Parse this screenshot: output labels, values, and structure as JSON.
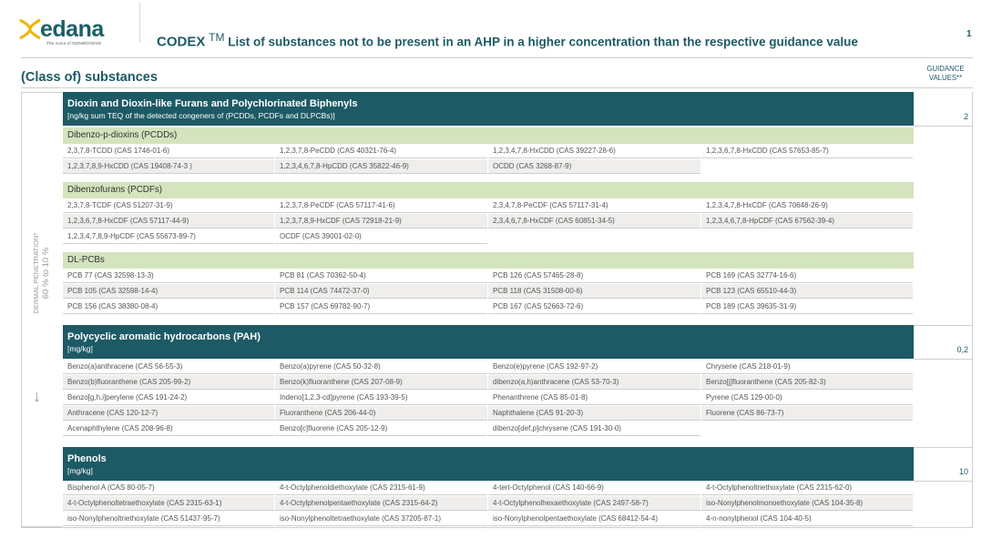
{
  "header": {
    "logo_text": "edana",
    "logo_tagline": "The voice of NONWOVENS",
    "codex": "CODEX",
    "tm": "TM",
    "title": "List of substances not to be present in an AHP in a higher concentration than the respective guidance value",
    "page_number": "1"
  },
  "table_head": {
    "class_paren_open": "(",
    "class_of": "Class of",
    "class_paren_close": ")",
    "class_rest": " substances",
    "guidance_line1": "GUIDANCE",
    "guidance_line2": "VALUES**"
  },
  "side": {
    "label": "DERMAL PENETRATION*",
    "value": "60 % to 10 %",
    "arrow": "↓"
  },
  "sections": [
    {
      "title": "Dioxin and Dioxin-like Furans and Polychlorinated Biphenyls",
      "unit": "[ng/kg sum TEQ of the detected congeners of (PCDDs, PCDFs and DLPCBs)]",
      "guidance": "2",
      "groups": [
        {
          "name": "Dibenzo-p-dioxins (PCDDs)",
          "rows": [
            [
              "2,3,7,8-TCDD (CAS 1746-01-6)",
              "1,2,3,7,8-PeCDD (CAS 40321-76-4)",
              "1,2,3,4,7,8-HxCDD (CAS 39227-28-6)",
              "1,2,3,6,7,8-HxCDD (CAS 57653-85-7)"
            ],
            [
              "1,2,3,7,8,9-HxCDD (CAS 19408-74-3 )",
              "1,2,3,4,6,7,8-HpCDD (CAS 35822-46-9)",
              "OCDD (CAS 3268-87-9)"
            ]
          ]
        },
        {
          "name": "Dibenzofurans (PCDFs)",
          "rows": [
            [
              "2,3,7,8-TCDF (CAS 51207-31-9)",
              "1,2,3,7,8-PeCDF (CAS 57117-41-6)",
              "2,3,4,7,8-PeCDF (CAS 57117-31-4)",
              "1,2,3,4,7,8-HxCDF (CAS 70648-26-9)"
            ],
            [
              "1,2,3,6,7,8-HxCDF (CAS 57117-44-9)",
              "1,2,3,7,8,9-HxCDF (CAS  72918-21-9)",
              "2,3,4,6,7,8-HxCDF (CAS 60851-34-5)",
              "1,2,3,4,6,7,8-HpCDF (CAS  67562-39-4)"
            ],
            [
              "1,2,3,4,7,8,9-HpCDF (CAS 55673-89-7)",
              "OCDF (CAS 39001-02-0)"
            ]
          ]
        },
        {
          "name": "DL-PCBs",
          "rows": [
            [
              "PCB 77 (CAS 32598-13-3)",
              "PCB 81 (CAS 70362-50-4)",
              "PCB 126 (CAS 57465-28-8)",
              "PCB 169 (CAS 32774-16-6)"
            ],
            [
              "PCB 105 (CAS 32598-14-4)",
              "PCB 114 (CAS 74472-37-0)",
              "PCB 118 (CAS 31508-00-6)",
              "PCB 123 (CAS 65510-44-3)"
            ],
            [
              "PCB 156 (CAS 38380-08-4)",
              "PCB 157 (CAS 69782-90-7)",
              "PCB 167 (CAS 52663-72-6)",
              "PCB 189 (CAS 39635-31-9)"
            ]
          ]
        }
      ]
    },
    {
      "title": "Polycyclic aromatic hydrocarbons (PAH)",
      "unit": "[mg/kg]",
      "guidance": "0,2",
      "rows": [
        [
          "Benzo(a)anthracene (CAS 56-55-3)",
          "Benzo(a)pyrene (CAS 50-32-8)",
          "Benzo(e)pyrene (CAS 192-97-2)",
          "Chrysene (CAS 218-01-9)"
        ],
        [
          "Benzo(b)fluoranthene (CAS 205-99-2)",
          "Benzo(k)fluoranthene (CAS 207-08-9)",
          "dibenzo(a,h)anthracene (CAS 53-70-3)",
          "Benzo[j]fluoranthene  (CAS 205-82-3)"
        ],
        [
          "Benzo[g,h,i]perylene (CAS 191-24-2)",
          "Indeno[1,2,3-cd]pyrene (CAS 193-39-5)",
          "Phenanthrene (CAS 85-01-8)",
          "Pyrene (CAS 129-00-0)"
        ],
        [
          "Anthracene (CAS 120-12-7)",
          "Fluoranthene (CAS 206-44-0)",
          "Naphthalene (CAS 91-20-3)",
          "Fluorene (CAS 86-73-7)"
        ],
        [
          "Acenaphthylene (CAS 208-96-8)",
          "Benzo[c]fluorene (CAS 205-12-9)",
          "dibenzo[def,p]chrysene (CAS 191-30-0)"
        ]
      ]
    },
    {
      "title": "Phenols",
      "unit": "[mg/kg]",
      "guidance": "10",
      "rows": [
        [
          "Bisphenol A (CAS 80-05-7)",
          "4-t-Octylphenoldiethoxylate (CAS 2315-61-9)",
          "4-tert-Octylphenol (CAS 140-66-9)",
          "4-t-Octylphenoltriethoxylate (CAS 2315-62-0)"
        ],
        [
          "4-t-Octylphenoltetraethoxylate (CAS 2315-63-1)",
          "4-t-Octylphenolpentaethoxylate (CAS 2315-64-2)",
          "4-t-Octylphenolhexaethoxylate (CAS 2497-58-7)",
          "iso-Nonylphenolmonoethoxylate (CAS 104-35-8)"
        ],
        [
          "iso-Nonylphenoltriethoxylate (CAS 51437-95-7)",
          "iso-Nonylphenoltetraethoxylate (CAS 37205-87-1)",
          "iso-Nonylphenolpentaethoxylate (CAS 68412-54-4)",
          "4-n-nonylphenol (CAS 104-40-5)"
        ]
      ]
    }
  ]
}
